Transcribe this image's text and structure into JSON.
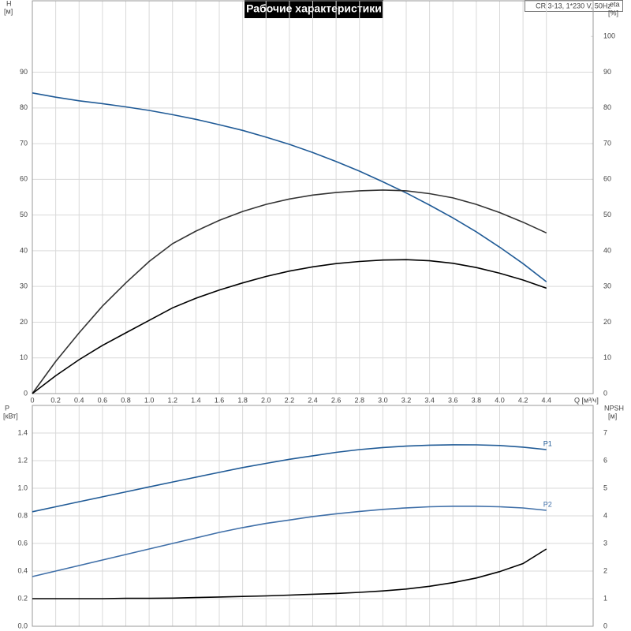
{
  "chart_data": [
    {
      "type": "line",
      "title": "Рабочие характеристики",
      "subtitle": "CR 3-13, 1*230 V, 50Hz",
      "ylabel": [
        "H",
        "[м]"
      ],
      "y2label": [
        "eta",
        "[%]"
      ],
      "xlabel": "Q [м³/ч]",
      "x": [
        0,
        0.2,
        0.4,
        0.6,
        0.8,
        1.0,
        1.2,
        1.4,
        1.6,
        1.8,
        2.0,
        2.2,
        2.4,
        2.6,
        2.8,
        3.0,
        3.2,
        3.4,
        3.6,
        3.8,
        4.0,
        4.2,
        4.4
      ],
      "xlim": [
        0,
        4.8
      ],
      "xticks": [
        0,
        0.2,
        0.4,
        0.6,
        0.8,
        {
          "value": 1.0,
          "label": "1.0"
        },
        1.2,
        1.4,
        1.6,
        1.8,
        {
          "value": 2.0,
          "label": "2.0"
        },
        2.2,
        2.4,
        2.6,
        2.8,
        {
          "value": 3.0,
          "label": "3.0"
        },
        3.2,
        3.4,
        3.6,
        3.8,
        {
          "value": 4.0,
          "label": "4.0"
        },
        4.2,
        4.4
      ],
      "ylim": [
        0,
        110
      ],
      "yticks": [
        0,
        10,
        20,
        30,
        40,
        50,
        60,
        70,
        80,
        90
      ],
      "y2lim": [
        0,
        110
      ],
      "y2ticks": [
        0,
        10,
        20,
        30,
        40,
        50,
        60,
        70,
        80,
        90,
        100
      ],
      "grid": true,
      "series": [
        {
          "color": "#1f5a96",
          "values": [
            84.2,
            83,
            82,
            81.2,
            80.3,
            79.3,
            78.1,
            76.8,
            75.3,
            73.7,
            71.8,
            69.8,
            67.5,
            65,
            62.3,
            59.3,
            56.2,
            52.8,
            49.2,
            45.3,
            41,
            36.4,
            31.3
          ]
        },
        {
          "color": "#333333",
          "axis": "y2",
          "values": [
            0,
            9,
            17,
            24.5,
            31,
            37,
            42,
            45.5,
            48.5,
            51,
            53,
            54.5,
            55.6,
            56.3,
            56.8,
            57,
            56.8,
            56,
            54.8,
            53,
            50.7,
            48,
            45
          ]
        },
        {
          "color": "#000000",
          "axis": "y2",
          "values": [
            0,
            5,
            9.5,
            13.5,
            17,
            20.5,
            24,
            26.7,
            29,
            31,
            32.8,
            34.3,
            35.5,
            36.4,
            37,
            37.4,
            37.5,
            37.2,
            36.5,
            35.3,
            33.7,
            31.8,
            29.5
          ]
        }
      ]
    },
    {
      "type": "line",
      "ylabel": [
        "P",
        "[кВт]"
      ],
      "y2label": [
        "NPSH",
        "[м]"
      ],
      "x": [
        0,
        0.2,
        0.4,
        0.6,
        0.8,
        1.0,
        1.2,
        1.4,
        1.6,
        1.8,
        2.0,
        2.2,
        2.4,
        2.6,
        2.8,
        3.0,
        3.2,
        3.4,
        3.6,
        3.8,
        4.0,
        4.2,
        4.4
      ],
      "xlim": [
        0,
        4.8
      ],
      "ylim": [
        0,
        1.6
      ],
      "yticks": [
        {
          "value": 0,
          "label": "0.0"
        },
        0.2,
        0.4,
        0.6,
        0.8,
        {
          "value": 1.0,
          "label": "1.0"
        },
        1.2,
        1.4
      ],
      "y2lim": [
        0,
        8
      ],
      "y2ticks": [
        0,
        1,
        2,
        3,
        4,
        5,
        6,
        7
      ],
      "grid": true,
      "series": [
        {
          "name": "P1",
          "color": "#1f5a96",
          "values": [
            0.83,
            0.866,
            0.902,
            0.938,
            0.974,
            1.01,
            1.045,
            1.08,
            1.115,
            1.15,
            1.18,
            1.21,
            1.235,
            1.26,
            1.28,
            1.295,
            1.305,
            1.312,
            1.315,
            1.314,
            1.31,
            1.298,
            1.28
          ]
        },
        {
          "name": "P2",
          "color": "#3f6fa8",
          "values": [
            0.36,
            0.4,
            0.44,
            0.48,
            0.52,
            0.56,
            0.6,
            0.64,
            0.68,
            0.715,
            0.745,
            0.77,
            0.795,
            0.815,
            0.832,
            0.847,
            0.858,
            0.866,
            0.87,
            0.87,
            0.866,
            0.857,
            0.84
          ]
        },
        {
          "color": "#000000",
          "axis": "y2",
          "values": [
            1,
            1,
            1,
            1,
            1.01,
            1.01,
            1.02,
            1.04,
            1.06,
            1.08,
            1.1,
            1.13,
            1.16,
            1.19,
            1.23,
            1.28,
            1.35,
            1.45,
            1.58,
            1.75,
            1.98,
            2.27,
            2.8
          ]
        }
      ]
    }
  ]
}
